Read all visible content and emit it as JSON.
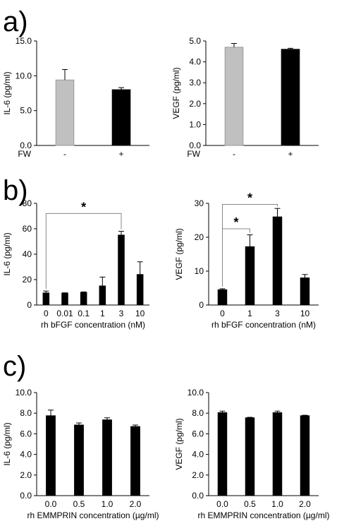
{
  "panels": [
    {
      "letter": "a)"
    },
    {
      "letter": "b)"
    },
    {
      "letter": "c)"
    }
  ],
  "chart_data": [
    {
      "type": "bar",
      "panel": "a)",
      "ylabel": "IL-6 (pg/ml)",
      "xlabel": "",
      "x_axis_name": "FW",
      "categories": [
        "-",
        "+"
      ],
      "values": [
        9.4,
        8.0
      ],
      "errors": [
        1.5,
        0.3
      ],
      "colors": [
        "#c0c0c0",
        "#000000"
      ],
      "ylim": [
        0,
        15
      ],
      "yticks": [
        "0.0",
        "5.0",
        "10.0",
        "15.0"
      ],
      "significance": []
    },
    {
      "type": "bar",
      "panel": "a)",
      "ylabel": "VEGF (pg/ml)",
      "xlabel": "",
      "x_axis_name": "FW",
      "categories": [
        "-",
        "+"
      ],
      "values": [
        4.7,
        4.6
      ],
      "errors": [
        0.18,
        0.05
      ],
      "colors": [
        "#c0c0c0",
        "#000000"
      ],
      "ylim": [
        0,
        5
      ],
      "yticks": [
        "0.0",
        "1.0",
        "2.0",
        "3.0",
        "4.0",
        "5.0"
      ],
      "significance": []
    },
    {
      "type": "bar",
      "panel": "b)",
      "ylabel": "IL-6 (pg/ml)",
      "xlabel": "rh bFGF concentration (nM)",
      "categories": [
        "0",
        "0.01",
        "0.1",
        "1",
        "3",
        "10"
      ],
      "values": [
        9.5,
        9.3,
        9.8,
        15,
        55,
        24
      ],
      "errors": [
        1.5,
        0.3,
        0.5,
        7,
        3,
        10
      ],
      "colors": [
        "#000000",
        "#000000",
        "#000000",
        "#000000",
        "#000000",
        "#000000"
      ],
      "ylim": [
        0,
        80
      ],
      "yticks": [
        "0",
        "20",
        "40",
        "60",
        "80"
      ],
      "significance": [
        {
          "from": 0,
          "to": 4,
          "level": 72,
          "label": "*"
        }
      ]
    },
    {
      "type": "bar",
      "panel": "b)",
      "ylabel": "VEGF (pg/ml)",
      "xlabel": "rh bFGF concentration (nM)",
      "categories": [
        "0",
        "1",
        "3",
        "10"
      ],
      "values": [
        4.5,
        17.2,
        26,
        8
      ],
      "errors": [
        0.3,
        3.5,
        2.5,
        1
      ],
      "colors": [
        "#000000",
        "#000000",
        "#000000",
        "#000000"
      ],
      "ylim": [
        0,
        30
      ],
      "yticks": [
        "0",
        "10",
        "20",
        "30"
      ],
      "significance": [
        {
          "from": 0,
          "to": 1,
          "level": 22.5,
          "label": "*"
        },
        {
          "from": 0,
          "to": 2,
          "level": 29.7,
          "label": "*"
        }
      ]
    },
    {
      "type": "bar",
      "panel": "c)",
      "ylabel": "IL-6 (pg/ml)",
      "xlabel": "rh  EMMPRIN concentration (µg/ml)",
      "categories": [
        "0.0",
        "0.5",
        "1.0",
        "2.0"
      ],
      "values": [
        7.75,
        6.85,
        7.35,
        6.7
      ],
      "errors": [
        0.55,
        0.2,
        0.2,
        0.15
      ],
      "colors": [
        "#000000",
        "#000000",
        "#000000",
        "#000000"
      ],
      "ylim": [
        0,
        10
      ],
      "yticks": [
        "0.0",
        "2.0",
        "4.0",
        "6.0",
        "8.0",
        "10.0"
      ],
      "significance": []
    },
    {
      "type": "bar",
      "panel": "c)",
      "ylabel": "VEGF (pg/ml)",
      "xlabel": "rh EMMPRIN concentration (µg/ml)",
      "categories": [
        "0.0",
        "0.5",
        "1.0",
        "2.0"
      ],
      "values": [
        8.05,
        7.55,
        8.05,
        7.75
      ],
      "errors": [
        0.15,
        0.05,
        0.15,
        0.05
      ],
      "colors": [
        "#000000",
        "#000000",
        "#000000",
        "#000000"
      ],
      "ylim": [
        0,
        10
      ],
      "yticks": [
        "0.0",
        "2.0",
        "4.0",
        "6.0",
        "8.0",
        "10.0"
      ],
      "significance": []
    }
  ]
}
